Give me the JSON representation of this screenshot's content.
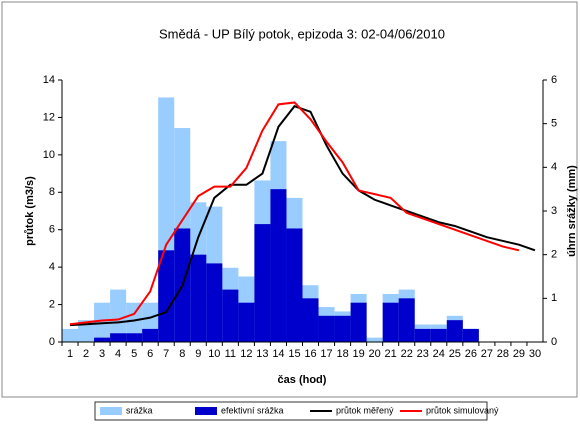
{
  "chart_data": {
    "type": "bar",
    "title": "Smědá - UP Bílý potok, epizoda 3: 02-04/06/2010",
    "x_label": "čas (hod)",
    "y_label": "průtok (m3/s)",
    "y2_label": "úhrn srážky (mm)",
    "categories": [
      "1",
      "2",
      "3",
      "4",
      "5",
      "6",
      "7",
      "8",
      "9",
      "10",
      "11",
      "12",
      "13",
      "14",
      "15",
      "16",
      "17",
      "18",
      "19",
      "20",
      "21",
      "22",
      "23",
      "24",
      "25",
      "26",
      "27",
      "28",
      "29",
      "30"
    ],
    "ylim": [
      0,
      14
    ],
    "yticks": [
      0,
      2,
      4,
      6,
      8,
      10,
      12,
      14
    ],
    "y2lim": [
      0,
      6
    ],
    "y2ticks": [
      0,
      1,
      2,
      3,
      4,
      5,
      6
    ],
    "legend": "bottom",
    "series": [
      {
        "name": "srážka",
        "type": "bar",
        "axis": "y2",
        "color": "#99ccff",
        "values": [
          0.3,
          0.5,
          0.9,
          1.2,
          0.9,
          0.9,
          5.6,
          4.9,
          3.2,
          3.1,
          1.7,
          1.5,
          3.7,
          4.6,
          3.3,
          1.3,
          0.8,
          0.7,
          1.1,
          0.1,
          1.1,
          1.2,
          0.4,
          0.4,
          0.6,
          0.3,
          0,
          0,
          0,
          0
        ]
      },
      {
        "name": "efektivní srážka",
        "type": "bar",
        "axis": "y2",
        "color": "#0000cc",
        "values": [
          0,
          0,
          0.1,
          0.2,
          0.2,
          0.3,
          2.1,
          2.6,
          2.0,
          1.8,
          1.2,
          0.9,
          2.7,
          3.5,
          2.6,
          1.0,
          0.6,
          0.6,
          0.9,
          0,
          0.9,
          1.0,
          0.3,
          0.3,
          0.5,
          0.3,
          0,
          0,
          0,
          0
        ]
      },
      {
        "name": "průtok měřený",
        "type": "line",
        "color": "#000000",
        "values": [
          0.9,
          0.95,
          1.0,
          1.05,
          1.15,
          1.3,
          1.6,
          3.0,
          5.6,
          7.7,
          8.4,
          8.4,
          9.0,
          11.5,
          12.6,
          12.3,
          10.5,
          9.0,
          8.1,
          7.6,
          7.3,
          7.0,
          6.7,
          6.4,
          6.2,
          5.9,
          5.6,
          5.4,
          5.2,
          4.9
        ]
      },
      {
        "name": "průtok simulovaný",
        "type": "line",
        "color": "#ff0000",
        "values": [
          0.95,
          1.05,
          1.15,
          1.2,
          1.5,
          2.7,
          5.2,
          6.5,
          7.8,
          8.3,
          8.3,
          9.3,
          11.3,
          12.7,
          12.8,
          11.9,
          10.7,
          9.6,
          8.1,
          7.9,
          7.7,
          6.9,
          6.6,
          6.3,
          6.0,
          5.7,
          5.4,
          5.1,
          4.9,
          null
        ]
      }
    ]
  }
}
